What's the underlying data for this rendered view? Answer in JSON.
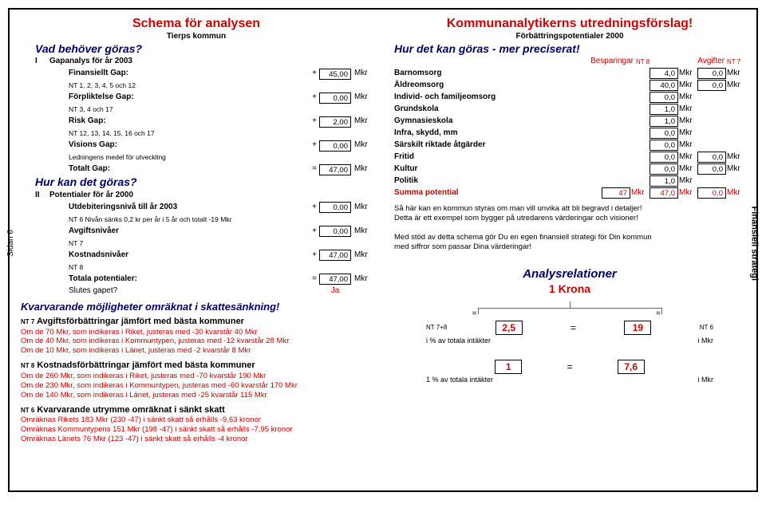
{
  "left": {
    "title": "Schema för analysen",
    "subtitle": "Tierps kommun",
    "q1": "Vad behöver göras?",
    "roman1": "I",
    "section1": "Gapanalys för år 2003",
    "rows": [
      {
        "label": "Finansiellt Gap:",
        "sign": "+",
        "val": "45,00",
        "unit": "Mkr",
        "bold": true
      },
      {
        "label": "NT 1, 2, 3, 4, 5 och 12",
        "small": true
      },
      {
        "label": "Förpliktelse Gap:",
        "sign": "+",
        "val": "0,00",
        "unit": "Mkr",
        "bold": true
      },
      {
        "label": "NT 3, 4 och 17",
        "small": true
      },
      {
        "label": "Risk Gap:",
        "sign": "+",
        "val": "2,00",
        "unit": "Mkr",
        "bold": true
      },
      {
        "label": "NT 12, 13, 14, 15, 16 och 17",
        "small": true
      },
      {
        "label": "Visions Gap:",
        "sign": "+",
        "val": "0,00",
        "unit": "Mkr",
        "bold": true
      },
      {
        "label": "Ledningens medel för utveckling",
        "small": true
      },
      {
        "label": "Totalt Gap:",
        "sign": "=",
        "val": "47,00",
        "unit": "Mkr",
        "bold": true
      }
    ],
    "q2": "Hur kan det göras?",
    "roman2": "II",
    "section2": "Potentialer för år 2000",
    "rows2": [
      {
        "label": "Utdebiteringsnivå till år 2003",
        "sign": "+",
        "val": "0,00",
        "unit": "Mkr",
        "bold": true
      },
      {
        "label": "NT 6    Nivån sänks 0,2 kr per år i 5 år och totalt -19 Mkr",
        "small": true
      },
      {
        "label": "Avgiftsnivåer",
        "sign": "+",
        "val": "0,00",
        "unit": "Mkr",
        "bold": true
      },
      {
        "label": "NT 7",
        "small": true
      },
      {
        "label": "Kostnadsnivåer",
        "sign": "+",
        "val": "47,00",
        "unit": "Mkr",
        "bold": true
      },
      {
        "label": "NT 8",
        "small": true
      },
      {
        "label": "Totala potentialer:",
        "sign": "=",
        "val": "47,00",
        "unit": "Mkr",
        "bold": true
      },
      {
        "label": "Slutes gapet?",
        "closes": "Ja"
      }
    ],
    "kvarhead": "Kvarvarande möjligheter omräknat i skattesänkning!",
    "nt7head_pre": "NT 7",
    "nt7head": "Avgiftsförbättringar jämfört med bästa kommuner",
    "nt7lines": [
      "Om de 70 Mkr, som indikeras i Riket, justeras med -30 kvarstår 40 Mkr",
      "Om de 40 Mkr, som indikeras i Kommuntypen, justeras med -12 kvarstår 28 Mkr",
      "Om de 10 Mkr, som indikeras i Länet, justeras med -2 kvarstår 8 Mkr"
    ],
    "nt8head_pre": "NT 8",
    "nt8head": "Kostnadsförbättringar jämfört med bästa kommuner",
    "nt8lines": [
      "Om de 260 Mkr, som indikeras i Riket, justeras med -70 kvarstår 190 Mkr",
      "Om de 230 Mkr, som indikeras i Kommuntypen, justeras med -60 kvarstår 170 Mkr",
      "Om de 140 Mkr, som indikeras i Länet, justeras med -25 kvarstår 115 Mkr"
    ],
    "nt6head_pre": "NT 6",
    "nt6head": "Kvarvarande utrymme omräknat i sänkt skatt",
    "nt6lines": [
      "Omräknas Rikets 183 Mkr (230 -47) i sänkt skatt så erhålls -9,63 kronor",
      "Omräknas Kommuntypens 151 Mkr (198 -47) i sänkt skatt så erhålls -7,95 kronor",
      "Omräknas Länets 76 Mkr (123 -47) i sänkt skatt så erhålls -4 kronor"
    ]
  },
  "right": {
    "title": "Kommunanalytikerns utredningsförslag!",
    "subtitle": "Förbättringspotentialer 2000",
    "q1": "Hur det kan göras - mer preciserat!",
    "besparingar_lbl": "Besparingar",
    "besparingar_nt": "NT 8",
    "avgifter_lbl": "Avgifter",
    "avgifter_nt": "NT 7",
    "rows": [
      {
        "label": "Barnomsorg",
        "v1": "4,0",
        "u1": "Mkr",
        "v3": "0,0",
        "u3": "Mkr"
      },
      {
        "label": "Äldreomsorg",
        "v1": "40,0",
        "u1": "Mkr",
        "v3": "0,0",
        "u3": "Mkr"
      },
      {
        "label": "Individ- och familjeomsorg",
        "v1": "0,0",
        "u1": "Mkr"
      },
      {
        "label": "Grundskola",
        "v1": "1,0",
        "u1": "Mkr"
      },
      {
        "label": "Gymnasieskola",
        "v1": "1,0",
        "u1": "Mkr"
      },
      {
        "label": "Infra, skydd, mm",
        "v1": "0,0",
        "u1": "Mkr"
      },
      {
        "label": "Särskilt riktade åtgärder",
        "v1": "0,0",
        "u1": "Mkr"
      },
      {
        "label": "Fritid",
        "v1": "0,0",
        "u1": "Mkr",
        "v3": "0,0",
        "u3": "Mkr"
      },
      {
        "label": "Kultur",
        "v1": "0,0",
        "u1": "Mkr",
        "v3": "0,0",
        "u3": "Mkr"
      },
      {
        "label": "Politik",
        "v1": "1,0",
        "u1": "Mkr"
      }
    ],
    "sumrow": {
      "label": "Summa potential",
      "v0": "47",
      "u0": "Mkr",
      "v1": "47,0",
      "u1": "Mkr",
      "v3": "0,0",
      "u3": "Mkr"
    },
    "para": [
      "Så här kan en kommun styras om man vill unvika att bli begravd i detaljer!",
      "Detta är ett exempel som bygger på utredarens värderingar och visioner!",
      "",
      "Med stöd av detta schema gör Du en egen finansiell strategi för Din kommun",
      "med siffror som passar Dina värderingar!"
    ],
    "relhead": "Analysrelationer",
    "krona": "1 Krona",
    "rel1": {
      "pre": "NT 7+8",
      "a": "2,5",
      "eq": "=",
      "b": "19",
      "post": "NT 6",
      "capL": "i % av totala intäkter",
      "capR": "i Mkr"
    },
    "rel2": {
      "a": "1",
      "eq": "=",
      "b": "7,6",
      "capL": "1 % av totala intäkter",
      "capR": "i Mkr"
    }
  },
  "side_left": "Sidan 6",
  "side_right": "Finansiell strategi"
}
